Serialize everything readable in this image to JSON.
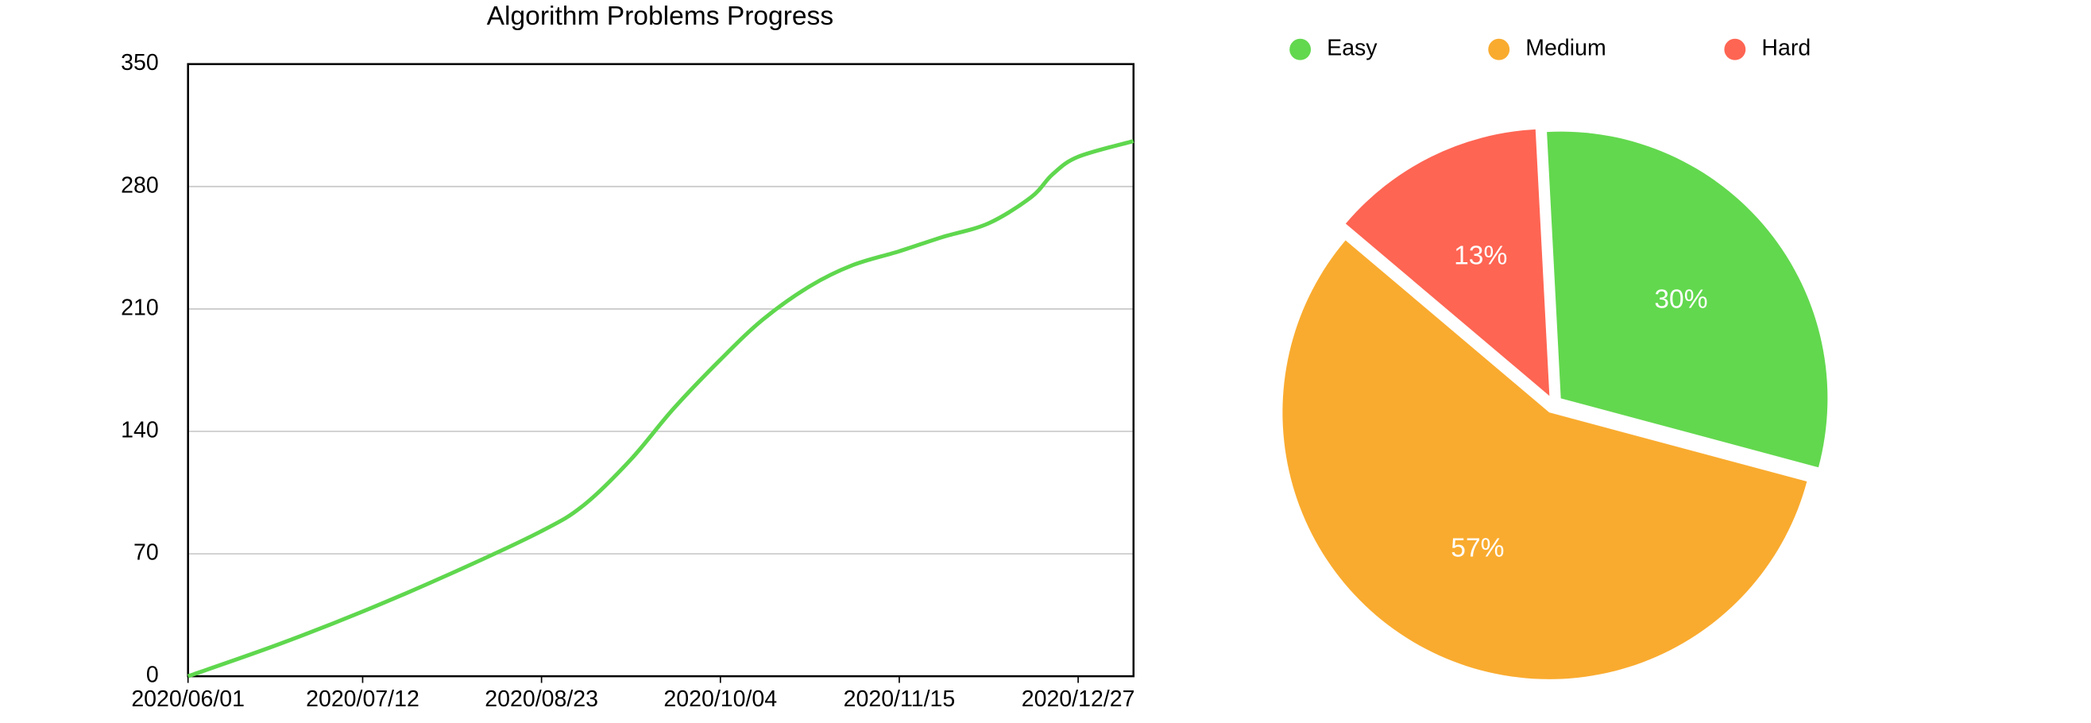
{
  "chart_data": [
    {
      "type": "line",
      "title": "Algorithm Problems Progress",
      "x": [
        "2020/06/01",
        "2020/06/22",
        "2020/07/12",
        "2020/08/02",
        "2020/08/23",
        "2020/09/02",
        "2020/09/13",
        "2020/09/23",
        "2020/10/04",
        "2020/10/14",
        "2020/10/25",
        "2020/11/04",
        "2020/11/15",
        "2020/11/25",
        "2020/12/06",
        "2020/12/16",
        "2020/12/21",
        "2020/12/27",
        "2021/01/09"
      ],
      "series": [
        {
          "color": "#5fd74e",
          "values": [
            0,
            18,
            37,
            59,
            83,
            98,
            124,
            153,
            181,
            204,
            223,
            235,
            243,
            251,
            259,
            274,
            287,
            297,
            306
          ]
        }
      ],
      "xlim": [
        "2020/06/01",
        "2021/01/09"
      ],
      "xticks": [
        "2020/06/01",
        "2020/07/12",
        "2020/08/23",
        "2020/10/04",
        "2020/11/15",
        "2020/12/27"
      ],
      "ylim": [
        0,
        350
      ],
      "yticks": [
        0,
        70,
        140,
        210,
        280,
        350
      ],
      "grid": true
    },
    {
      "type": "pie",
      "legend": "top",
      "categories": [
        "Easy",
        "Medium",
        "Hard"
      ],
      "values": [
        30,
        57,
        13
      ],
      "value_labels": [
        "30%",
        "57%",
        "13%"
      ],
      "colors": [
        "#62d84e",
        "#f9ab2f",
        "#fe6553"
      ]
    }
  ]
}
